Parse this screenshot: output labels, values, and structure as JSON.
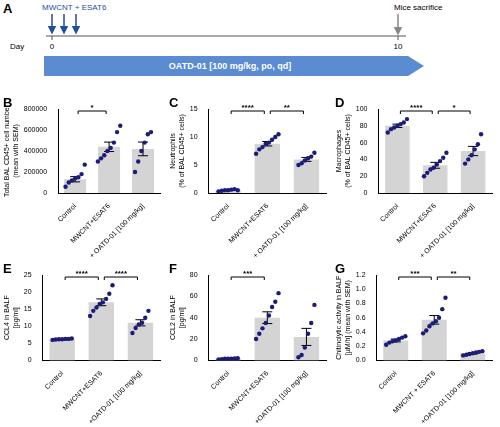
{
  "timeline": {
    "panel": "A",
    "dose_label": "MWCNT + ESAT6",
    "end_label": "Mice sacrifice",
    "axis_label": "Day",
    "days": [
      0,
      10
    ],
    "treatment_label": "OATD-01 [100 mg/kg, po, qd]"
  },
  "chart_data": [
    {
      "panel": "B",
      "type": "bar",
      "categories": [
        "Control",
        "MWCNT+ESAT6",
        "+ OATD-01 [100 mg/kg]"
      ],
      "values": [
        131000,
        440000,
        420000
      ],
      "errors": [
        25000,
        45000,
        65000
      ],
      "points": [
        [
          60000,
          100000,
          120000,
          140000,
          150000,
          180000,
          270000
        ],
        [
          300000,
          330000,
          360000,
          400000,
          430000,
          480000,
          580000,
          640000
        ],
        [
          200000,
          300000,
          400000,
          480000,
          560000,
          580000
        ]
      ],
      "ylabel": [
        "Total BAL CD45+ cell number",
        "(mean with SEM)"
      ],
      "ylim": [
        0,
        800000
      ],
      "yticks": [
        0,
        200000,
        400000,
        600000,
        800000
      ],
      "color": "#d4d4d4",
      "grid": false,
      "significance": [
        {
          "from": 0,
          "to": 1,
          "label": "*"
        }
      ]
    },
    {
      "panel": "C",
      "type": "bar",
      "categories": [
        "Control",
        "MWCNT+ESAT6",
        "+ OATD-01 [100 mg/kg]"
      ],
      "values": [
        0.5,
        8.8,
        6.0
      ],
      "errors": [
        0.05,
        0.4,
        0.35
      ],
      "points": [
        [
          0.3,
          0.4,
          0.5,
          0.5,
          0.6,
          0.7,
          0.5
        ],
        [
          7.0,
          7.8,
          8.2,
          8.8,
          9.0,
          9.5,
          10.0,
          10.5
        ],
        [
          5.0,
          5.3,
          5.8,
          6.2,
          6.5,
          7.2
        ]
      ],
      "ylabel": [
        "Neutrophils",
        "(% of BAL CD45+ cells)"
      ],
      "ylim": [
        0,
        15
      ],
      "yticks": [
        0,
        5,
        10,
        15
      ],
      "color": "#d4d4d4",
      "grid": false,
      "significance": [
        {
          "from": 0,
          "to": 1,
          "label": "****"
        },
        {
          "from": 1,
          "to": 2,
          "label": "**"
        }
      ]
    },
    {
      "panel": "D",
      "type": "bar",
      "categories": [
        "Control",
        "MWCNT+ESAT6",
        "+ OATD-01 [100 mg/kg]"
      ],
      "values": [
        80,
        33,
        50
      ],
      "errors": [
        2,
        3.5,
        5.5
      ],
      "points": [
        [
          72,
          76,
          78,
          80,
          82,
          84,
          88
        ],
        [
          20,
          24,
          28,
          30,
          34,
          38,
          42,
          48
        ],
        [
          35,
          40,
          45,
          52,
          58,
          70
        ]
      ],
      "ylabel": [
        "Macrophages",
        "(% of BAL CD45+ cells)"
      ],
      "ylim": [
        0,
        100
      ],
      "yticks": [
        0,
        20,
        40,
        60,
        80,
        100
      ],
      "color": "#d4d4d4",
      "grid": false,
      "significance": [
        {
          "from": 0,
          "to": 1,
          "label": "****"
        },
        {
          "from": 1,
          "to": 2,
          "label": "*"
        }
      ]
    },
    {
      "panel": "E",
      "type": "bar",
      "categories": [
        "Control",
        "MWCNT+ESAT6",
        "+OATD-01 [100 mg/kg]"
      ],
      "values": [
        6.2,
        17,
        11
      ],
      "errors": [
        0.05,
        1,
        0.9
      ],
      "points": [
        [
          6.0,
          6.1,
          6.2,
          6.2,
          6.3,
          6.3,
          6.4
        ],
        [
          13,
          14.5,
          15.5,
          16.5,
          17,
          18,
          19.5,
          22
        ],
        [
          8,
          9.5,
          10.5,
          11,
          12.5,
          14.5
        ]
      ],
      "ylabel": [
        "CCL4 in BALF",
        "[pg/ml]"
      ],
      "ylim": [
        0,
        25
      ],
      "yticks": [
        0,
        5,
        10,
        15,
        20,
        25
      ],
      "color": "#d4d4d4",
      "grid": false,
      "significance": [
        {
          "from": 0,
          "to": 1,
          "label": "****"
        },
        {
          "from": 1,
          "to": 2,
          "label": "****"
        }
      ]
    },
    {
      "panel": "F",
      "type": "bar",
      "categories": [
        "Control",
        "MWCNT+ESAT6",
        "+OATD-01 [100 mg/kg]"
      ],
      "values": [
        1.5,
        40,
        22
      ],
      "errors": [
        0.15,
        5.5,
        8
      ],
      "points": [
        [
          1,
          1.2,
          1.5,
          1.5,
          1.6,
          1.8,
          2
        ],
        [
          20,
          25,
          30,
          35,
          42,
          50,
          55,
          63
        ],
        [
          3,
          5,
          12,
          25,
          35,
          52
        ]
      ],
      "ylabel": [
        "CCL2 in BALF",
        "[pg/ml]"
      ],
      "ylim": [
        0,
        80
      ],
      "yticks": [
        0,
        20,
        40,
        60,
        80
      ],
      "color": "#d4d4d4",
      "grid": false,
      "significance": [
        {
          "from": 0,
          "to": 1,
          "label": "***"
        }
      ]
    },
    {
      "panel": "G",
      "type": "bar",
      "categories": [
        "Control",
        "MWCNT + ESAT6",
        "+OATD-01 [100 mg/kg]"
      ],
      "values": [
        0.28,
        0.57,
        0.1
      ],
      "errors": [
        0.02,
        0.06,
        0.01
      ],
      "points": [
        [
          0.22,
          0.25,
          0.27,
          0.28,
          0.3,
          0.32,
          0.34
        ],
        [
          0.38,
          0.42,
          0.48,
          0.52,
          0.55,
          0.6,
          0.72,
          0.88
        ],
        [
          0.07,
          0.08,
          0.09,
          0.1,
          0.11,
          0.12,
          0.13
        ]
      ],
      "ylabel": [
        "Chitinolytic activity in BALF",
        "[µM/h] (mean with SEM)"
      ],
      "ylim": [
        0,
        1.2
      ],
      "yticks": [
        {
          "value": 0,
          "label": "0.0"
        },
        {
          "value": 0.2,
          "label": "0.2"
        },
        {
          "value": 0.4,
          "label": "0.4"
        },
        {
          "value": 0.6,
          "label": "0.6"
        },
        {
          "value": 0.8,
          "label": "0.8"
        },
        {
          "value": 1,
          "label": "1.0"
        },
        {
          "value": 1.2,
          "label": "1.2"
        }
      ],
      "color": "#d4d4d4",
      "grid": false,
      "significance": [
        {
          "from": 0,
          "to": 1,
          "label": "***"
        },
        {
          "from": 1,
          "to": 2,
          "label": "**"
        }
      ]
    }
  ]
}
